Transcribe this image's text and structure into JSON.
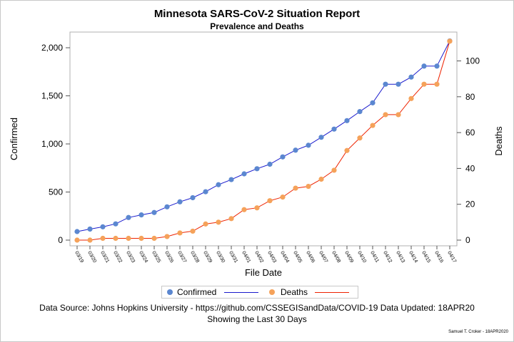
{
  "chart_data": {
    "type": "line",
    "title": "Minnesota SARS-CoV-2 Situation Report",
    "subtitle": "Prevalence and Deaths",
    "xlabel": "File Date",
    "ylabel_left": "Confirmed",
    "ylabel_right": "Deaths",
    "categories": [
      "03/19",
      "03/20",
      "03/21",
      "03/22",
      "03/23",
      "03/24",
      "03/25",
      "03/26",
      "03/27",
      "03/28",
      "03/29",
      "03/30",
      "03/31",
      "04/01",
      "04/02",
      "04/03",
      "04/04",
      "04/05",
      "04/06",
      "04/07",
      "04/08",
      "04/09",
      "04/10",
      "04/11",
      "04/12",
      "04/13",
      "04/14",
      "04/15",
      "04/16",
      "04/17"
    ],
    "left_axis": {
      "min": 0,
      "max": 2000,
      "ticks": [
        0,
        500,
        1000,
        1500,
        2000
      ],
      "tick_labels": [
        "0",
        "500",
        "1,000",
        "1,500",
        "2,000"
      ]
    },
    "right_axis": {
      "min": 0,
      "max": 100,
      "ticks": [
        0,
        20,
        40,
        60,
        80,
        100
      ],
      "tick_labels": [
        "0",
        "20",
        "40",
        "60",
        "80",
        "100"
      ]
    },
    "series": [
      {
        "name": "Confirmed",
        "axis": "left",
        "color": "#1a1acd",
        "marker_color": "#5b87d0",
        "values": [
          89,
          115,
          138,
          169,
          235,
          262,
          287,
          346,
          398,
          441,
          503,
          576,
          629,
          689,
          742,
          789,
          865,
          935,
          986,
          1069,
          1154,
          1242,
          1336,
          1427,
          1621,
          1621,
          1695,
          1809,
          1809,
          2071
        ]
      },
      {
        "name": "Deaths",
        "axis": "right",
        "color": "#ee2200",
        "marker_color": "#f5a25a",
        "values": [
          0,
          0,
          1,
          1,
          1,
          1,
          1,
          2,
          4,
          5,
          9,
          10,
          12,
          17,
          18,
          22,
          24,
          29,
          30,
          34,
          39,
          50,
          57,
          64,
          70,
          70,
          79,
          87,
          87,
          111
        ]
      }
    ],
    "legend": {
      "position": "bottom",
      "items": [
        "Confirmed",
        "Deaths"
      ]
    },
    "grid": false
  },
  "footnote1": "Data Source: Johns Hopkins University - https://github.com/CSSEGISandData/COVID-19 Data Updated: 18APR20",
  "footnote2": "Showing the Last 30 Days",
  "credit": "Samuel T. Croker - 18APR2020"
}
